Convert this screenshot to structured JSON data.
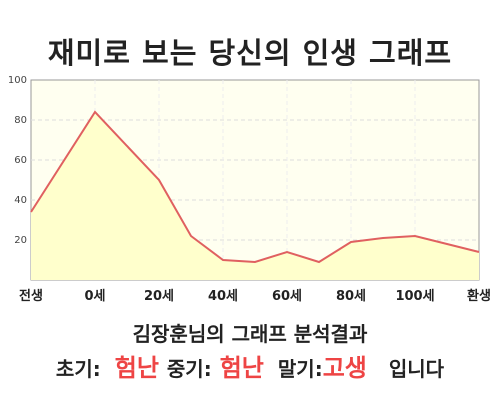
{
  "title": "재미로 보는 당신의 인생 그래프",
  "summary": "김장훈님의 그래프 분석결과",
  "result": {
    "early_label": "초기:",
    "early_value": "험난",
    "mid_label": "중기:",
    "mid_value": "험난",
    "late_label": "말기:",
    "late_value": "고생",
    "suffix": "입니다"
  },
  "colors": {
    "accent": "#ee4444",
    "line": "#e06060",
    "fill": "#ffffcc",
    "plot_bg": "#fffff0"
  },
  "chart_data": {
    "type": "area",
    "x": [
      -20,
      0,
      20,
      30,
      40,
      50,
      60,
      70,
      80,
      90,
      100,
      110,
      120
    ],
    "y": [
      34,
      84,
      50,
      22,
      10,
      9,
      14,
      9,
      19,
      21,
      22,
      18,
      14
    ],
    "ylim": [
      0,
      100
    ],
    "yticks": [
      20,
      40,
      60,
      80,
      100
    ],
    "xtick_labels": [
      {
        "x": -20,
        "label": "전생"
      },
      {
        "x": 0,
        "label": "0세"
      },
      {
        "x": 20,
        "label": "20세"
      },
      {
        "x": 40,
        "label": "40세"
      },
      {
        "x": 60,
        "label": "60세"
      },
      {
        "x": 80,
        "label": "80세"
      },
      {
        "x": 100,
        "label": "100세"
      },
      {
        "x": 120,
        "label": "환생"
      }
    ],
    "grid": true
  }
}
